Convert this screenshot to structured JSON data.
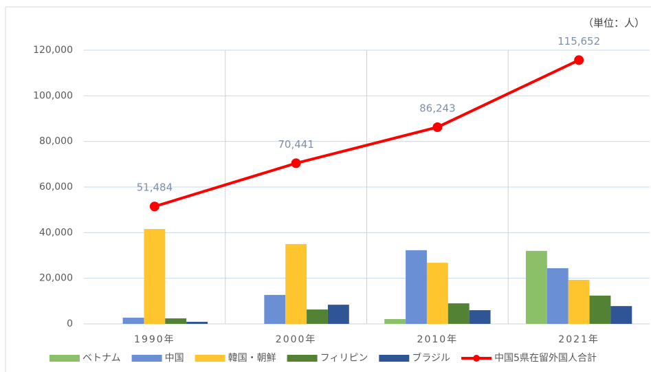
{
  "chart_data": {
    "type": "bar",
    "annotation": "（単位：人）",
    "categories": [
      "1990年",
      "2000年",
      "2010年",
      "2021年"
    ],
    "series": [
      {
        "name": "ベトナム",
        "color": "#8cc068",
        "values": [
          0,
          0,
          2100,
          32000
        ]
      },
      {
        "name": "中国",
        "color": "#6a8fd4",
        "values": [
          2700,
          12700,
          32300,
          24400
        ]
      },
      {
        "name": "韓国・朝鮮",
        "color": "#fec52e",
        "values": [
          41600,
          35000,
          26800,
          19300
        ]
      },
      {
        "name": "フィリピン",
        "color": "#548235",
        "values": [
          2400,
          6300,
          9000,
          12400
        ]
      },
      {
        "name": "ブラジル",
        "color": "#2f5597",
        "values": [
          900,
          8400,
          6000,
          7800
        ]
      },
      {
        "name": "中国5県在留外国人合計",
        "color": "#ff0000",
        "type": "line",
        "values": [
          51484,
          70441,
          86243,
          115652
        ],
        "value_labels": [
          "51,484",
          "70,441",
          "86,243",
          "115,652"
        ]
      }
    ],
    "ylim": [
      0,
      120000
    ],
    "yticks": [
      0,
      {
        "value": 20000,
        "label": "20,000"
      },
      {
        "value": 40000,
        "label": "40,000"
      },
      {
        "value": 60000,
        "label": "60,000"
      },
      {
        "value": 80000,
        "label": "80,000"
      },
      {
        "value": 100000,
        "label": "100,000"
      },
      {
        "value": 120000,
        "label": "120,000"
      }
    ],
    "grid": true
  }
}
